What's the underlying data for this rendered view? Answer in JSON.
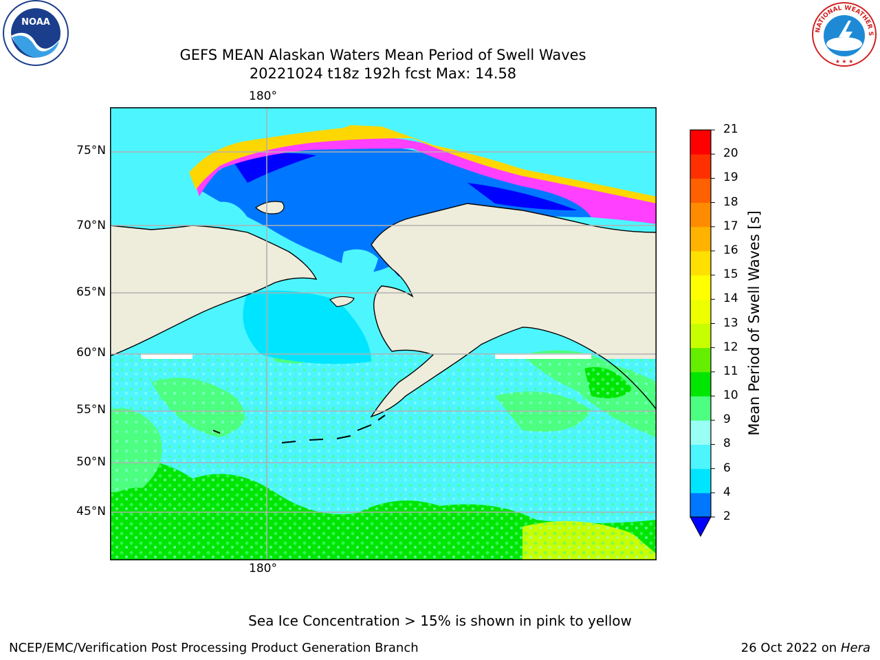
{
  "title": {
    "line1": "GEFS MEAN Alaskan Waters Mean Period of Swell Waves",
    "line2": "20221024 t18z 192h fcst   Max: 14.58"
  },
  "map": {
    "lon_label_top": "180°",
    "lon_label_bottom": "180°",
    "lat_labels": [
      "75°N",
      "70°N",
      "65°N",
      "60°N",
      "55°N",
      "50°N",
      "45°N"
    ],
    "land_color": "#eeecdb",
    "grid_color": "#b0b0b0"
  },
  "colorbar": {
    "title": "Mean Period of Swell Waves [s]",
    "ticks": [
      "2",
      "4",
      "6",
      "8",
      "9",
      "10",
      "11",
      "12",
      "13",
      "14",
      "15",
      "16",
      "17",
      "18",
      "19",
      "20",
      "21"
    ],
    "colors": [
      "#0077ff",
      "#00e5ff",
      "#4df5ff",
      "#99fff5",
      "#4dff80",
      "#00e600",
      "#66ee00",
      "#c8ff00",
      "#eeff00",
      "#ffff00",
      "#ffe000",
      "#ffb300",
      "#ff8c00",
      "#ff6000",
      "#ff3000",
      "#ff0000"
    ],
    "under_color": "#0000ff"
  },
  "footer": {
    "note": "Sea Ice Concentration > 15% is shown in pink to yellow",
    "left_credit": "NCEP/EMC/Verification Post Processing Product Generation Branch",
    "right_credit_prefix": "26 Oct 2022 on ",
    "right_credit_host": "Hera"
  },
  "logos": {
    "noaa_text": "NOAA",
    "nws_text": "NATIONAL WEATHER SERVICE"
  }
}
